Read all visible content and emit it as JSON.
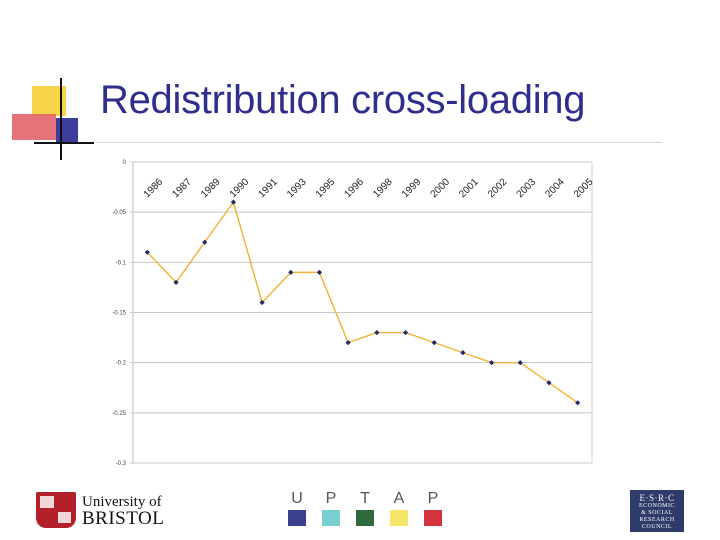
{
  "slide": {
    "title": "Redistribution cross-loading"
  },
  "chart_data": {
    "type": "line",
    "title": "",
    "xlabel": "",
    "ylabel": "",
    "categories": [
      "1986",
      "1987",
      "1989",
      "1990",
      "1991",
      "1993",
      "1995",
      "1996",
      "1998",
      "1999",
      "2000",
      "2001",
      "2002",
      "2003",
      "2004",
      "2005"
    ],
    "values": [
      -0.09,
      -0.12,
      -0.08,
      -0.04,
      -0.14,
      -0.11,
      -0.11,
      -0.18,
      -0.17,
      -0.17,
      -0.18,
      -0.19,
      -0.2,
      -0.2,
      -0.22,
      -0.24
    ],
    "ylim": [
      -0.3,
      0
    ],
    "yticks": [
      0,
      -0.05,
      -0.1,
      -0.15,
      -0.2,
      -0.25,
      -0.3
    ],
    "ytick_labels": [
      "0",
      "-0.05",
      "-0.1",
      "-0.15",
      "-0.2",
      "-0.25",
      "-0.3"
    ],
    "grid": true,
    "line_color": "#f2b233",
    "marker_color": "#1f2a6e"
  },
  "footer": {
    "bristol": {
      "line1": "University of",
      "line2": "BRISTOL"
    },
    "uptap": [
      {
        "letter": "U",
        "color": "#3b3f8f"
      },
      {
        "letter": "P",
        "color": "#78cfd0"
      },
      {
        "letter": "T",
        "color": "#2f6b3e"
      },
      {
        "letter": "A",
        "color": "#f5e46a"
      },
      {
        "letter": "P",
        "color": "#d3343f"
      }
    ],
    "esrc": {
      "top": "E·S·R·C",
      "lines": [
        "ECONOMIC",
        "& SOCIAL",
        "RESEARCH",
        "COUNCIL"
      ]
    }
  }
}
